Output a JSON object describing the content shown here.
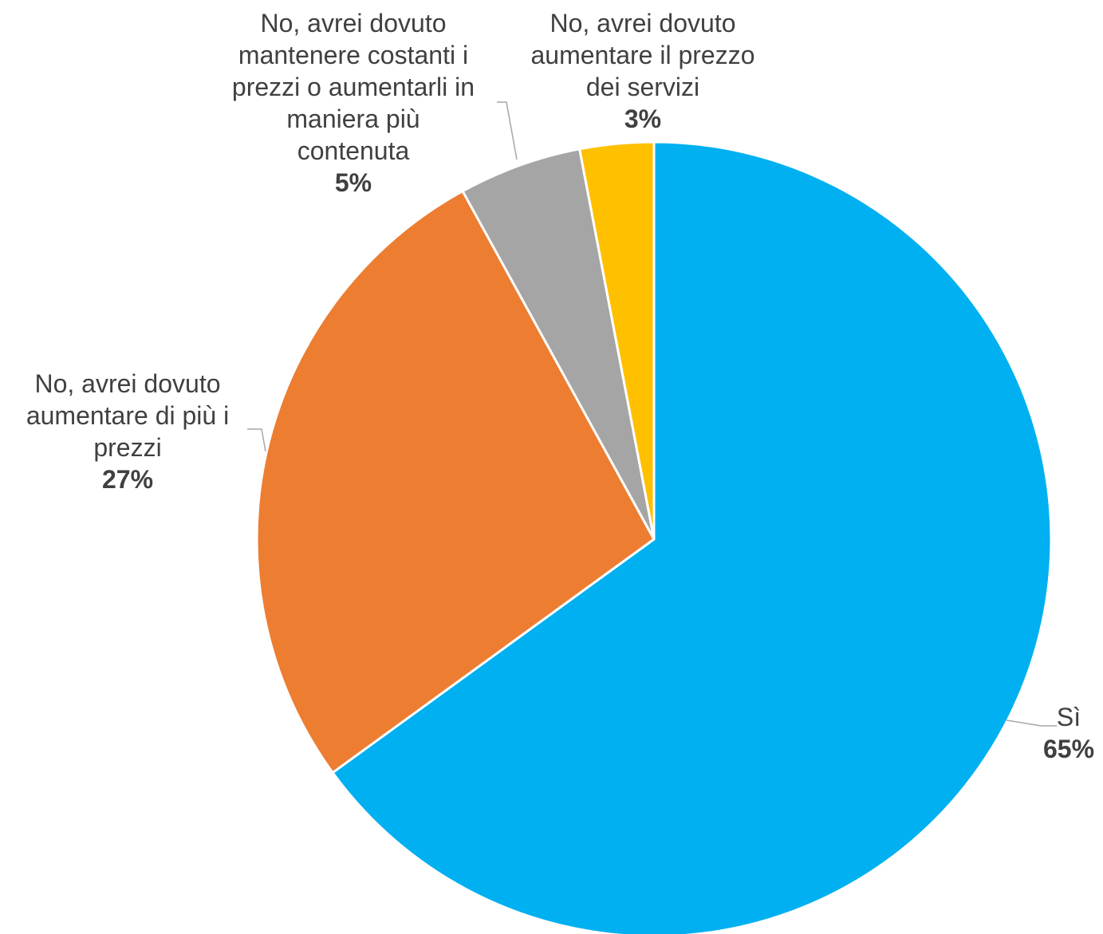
{
  "chart_data": {
    "type": "pie",
    "title": "",
    "slices": [
      {
        "label": "Sì",
        "value": 65,
        "value_label": "65%",
        "color": "#00B0F0",
        "label_lines": [
          "Sì"
        ]
      },
      {
        "label": "No, avrei dovuto aumentare di più i prezzi",
        "value": 27,
        "value_label": "27%",
        "color": "#ED7D31",
        "label_lines": [
          "No, avrei dovuto",
          "aumentare di più i",
          "prezzi"
        ]
      },
      {
        "label": "No, avrei dovuto mantenere costanti i prezzi o aumentarli in maniera più contenuta",
        "value": 5,
        "value_label": "5%",
        "color": "#A5A5A5",
        "label_lines": [
          "No, avrei dovuto",
          "mantenere costanti i",
          "prezzi o aumentarli in",
          "maniera più",
          "contenuta"
        ]
      },
      {
        "label": "No, avrei dovuto aumentare il prezzo dei servizi",
        "value": 3,
        "value_label": "3%",
        "color": "#FFC000",
        "label_lines": [
          "No, avrei dovuto",
          "aumentare il prezzo",
          "dei servizi"
        ]
      }
    ],
    "start_angle": "12 o'clock",
    "direction": "clockwise",
    "legend": "none",
    "data_labels": "outside with leader lines"
  }
}
